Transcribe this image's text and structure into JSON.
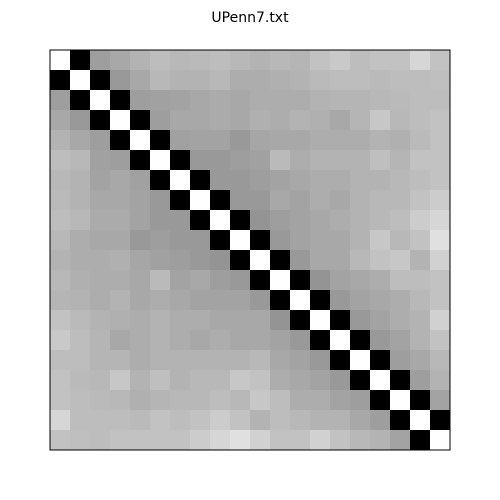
{
  "chart_data": {
    "type": "heatmap",
    "title": "UPenn7.txt",
    "colormap": "gray",
    "rows": 20,
    "cols": 20,
    "xlabel": "",
    "ylabel": "",
    "axis_ticks": false,
    "values": [
      [
        1.0,
        0.0,
        0.62,
        0.66,
        0.7,
        0.74,
        0.72,
        0.73,
        0.74,
        0.72,
        0.7,
        0.72,
        0.71,
        0.76,
        0.79,
        0.74,
        0.76,
        0.76,
        0.84,
        0.76
      ],
      [
        0.0,
        1.0,
        0.0,
        0.6,
        0.66,
        0.72,
        0.7,
        0.7,
        0.72,
        0.68,
        0.68,
        0.69,
        0.7,
        0.73,
        0.74,
        0.74,
        0.73,
        0.74,
        0.74,
        0.75
      ],
      [
        0.62,
        0.0,
        1.0,
        0.0,
        0.62,
        0.63,
        0.64,
        0.66,
        0.67,
        0.66,
        0.68,
        0.68,
        0.68,
        0.7,
        0.71,
        0.71,
        0.72,
        0.73,
        0.74,
        0.74
      ],
      [
        0.66,
        0.6,
        0.0,
        1.0,
        0.0,
        0.62,
        0.66,
        0.66,
        0.67,
        0.66,
        0.69,
        0.68,
        0.7,
        0.69,
        0.66,
        0.71,
        0.78,
        0.72,
        0.74,
        0.76
      ],
      [
        0.7,
        0.66,
        0.62,
        0.0,
        1.0,
        0.0,
        0.63,
        0.64,
        0.64,
        0.6,
        0.65,
        0.66,
        0.66,
        0.68,
        0.68,
        0.68,
        0.7,
        0.69,
        0.73,
        0.76
      ],
      [
        0.74,
        0.72,
        0.63,
        0.62,
        0.0,
        1.0,
        0.0,
        0.6,
        0.6,
        0.62,
        0.63,
        0.73,
        0.68,
        0.7,
        0.7,
        0.7,
        0.75,
        0.71,
        0.76,
        0.76
      ],
      [
        0.72,
        0.7,
        0.64,
        0.66,
        0.63,
        0.0,
        1.0,
        0.0,
        0.6,
        0.6,
        0.62,
        0.64,
        0.66,
        0.68,
        0.68,
        0.7,
        0.7,
        0.72,
        0.74,
        0.76
      ],
      [
        0.73,
        0.7,
        0.66,
        0.66,
        0.64,
        0.6,
        0.0,
        1.0,
        0.0,
        0.6,
        0.6,
        0.66,
        0.64,
        0.68,
        0.66,
        0.7,
        0.72,
        0.72,
        0.76,
        0.8
      ],
      [
        0.74,
        0.72,
        0.67,
        0.67,
        0.64,
        0.6,
        0.6,
        0.0,
        1.0,
        0.0,
        0.58,
        0.62,
        0.64,
        0.66,
        0.68,
        0.7,
        0.72,
        0.74,
        0.8,
        0.84
      ],
      [
        0.72,
        0.68,
        0.66,
        0.66,
        0.6,
        0.62,
        0.6,
        0.6,
        0.0,
        1.0,
        0.0,
        0.6,
        0.64,
        0.66,
        0.66,
        0.7,
        0.78,
        0.72,
        0.76,
        0.88
      ],
      [
        0.7,
        0.68,
        0.68,
        0.69,
        0.65,
        0.63,
        0.62,
        0.6,
        0.58,
        0.0,
        1.0,
        0.0,
        0.6,
        0.66,
        0.66,
        0.72,
        0.76,
        0.78,
        0.7,
        0.82
      ],
      [
        0.72,
        0.69,
        0.68,
        0.68,
        0.66,
        0.73,
        0.64,
        0.66,
        0.62,
        0.6,
        0.0,
        1.0,
        0.0,
        0.58,
        0.64,
        0.66,
        0.68,
        0.74,
        0.74,
        0.76
      ],
      [
        0.71,
        0.7,
        0.68,
        0.7,
        0.66,
        0.68,
        0.66,
        0.64,
        0.64,
        0.64,
        0.6,
        0.0,
        1.0,
        0.0,
        0.6,
        0.64,
        0.66,
        0.68,
        0.72,
        0.76
      ],
      [
        0.76,
        0.73,
        0.7,
        0.69,
        0.68,
        0.7,
        0.68,
        0.68,
        0.66,
        0.66,
        0.66,
        0.58,
        0.0,
        1.0,
        0.0,
        0.6,
        0.64,
        0.68,
        0.7,
        0.82
      ],
      [
        0.79,
        0.74,
        0.71,
        0.66,
        0.68,
        0.7,
        0.68,
        0.66,
        0.68,
        0.66,
        0.66,
        0.64,
        0.6,
        0.0,
        1.0,
        0.0,
        0.6,
        0.64,
        0.7,
        0.76
      ],
      [
        0.74,
        0.74,
        0.71,
        0.71,
        0.68,
        0.7,
        0.7,
        0.7,
        0.7,
        0.7,
        0.72,
        0.66,
        0.64,
        0.6,
        0.0,
        1.0,
        0.0,
        0.62,
        0.66,
        0.72
      ],
      [
        0.76,
        0.73,
        0.72,
        0.78,
        0.7,
        0.75,
        0.7,
        0.72,
        0.72,
        0.78,
        0.76,
        0.68,
        0.66,
        0.64,
        0.6,
        0.0,
        1.0,
        0.0,
        0.62,
        0.7
      ],
      [
        0.76,
        0.74,
        0.73,
        0.72,
        0.69,
        0.71,
        0.72,
        0.72,
        0.74,
        0.72,
        0.78,
        0.74,
        0.68,
        0.68,
        0.64,
        0.62,
        0.0,
        1.0,
        0.0,
        0.64
      ],
      [
        0.84,
        0.74,
        0.74,
        0.74,
        0.73,
        0.76,
        0.74,
        0.76,
        0.8,
        0.76,
        0.7,
        0.74,
        0.72,
        0.7,
        0.7,
        0.66,
        0.62,
        0.0,
        1.0,
        0.0
      ],
      [
        0.76,
        0.75,
        0.74,
        0.76,
        0.76,
        0.76,
        0.76,
        0.8,
        0.84,
        0.88,
        0.82,
        0.76,
        0.76,
        0.82,
        0.76,
        0.72,
        0.7,
        0.64,
        0.0,
        1.0
      ]
    ]
  }
}
